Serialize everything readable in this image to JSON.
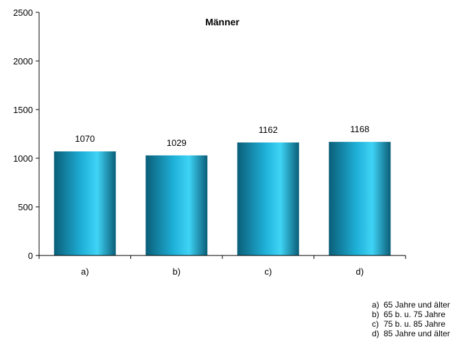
{
  "chart_data": {
    "type": "bar",
    "title": "Männer",
    "categories": [
      "a)",
      "b)",
      "c)",
      "d)"
    ],
    "values": [
      1070,
      1029,
      1162,
      1168
    ],
    "data_labels": [
      "1070",
      "1029",
      "1162",
      "1168"
    ],
    "ylim": [
      0,
      2500
    ],
    "yticks": [
      0,
      500,
      1000,
      1500,
      2000,
      2500
    ],
    "xlabel": "",
    "ylabel": "",
    "grid": false,
    "bar_colors": {
      "dark": "#0a5e78",
      "mid": "#1fb0d8",
      "light": "#3fd4f6"
    },
    "legend": {
      "placement": "bottom-right",
      "items": [
        {
          "key": "a)",
          "text": "65 Jahre und älter"
        },
        {
          "key": "b)",
          "text": "65 b. u. 75 Jahre"
        },
        {
          "key": "c)",
          "text": "75 b. u. 85 Jahre"
        },
        {
          "key": "d)",
          "text": "85 Jahre und älter"
        }
      ]
    }
  }
}
